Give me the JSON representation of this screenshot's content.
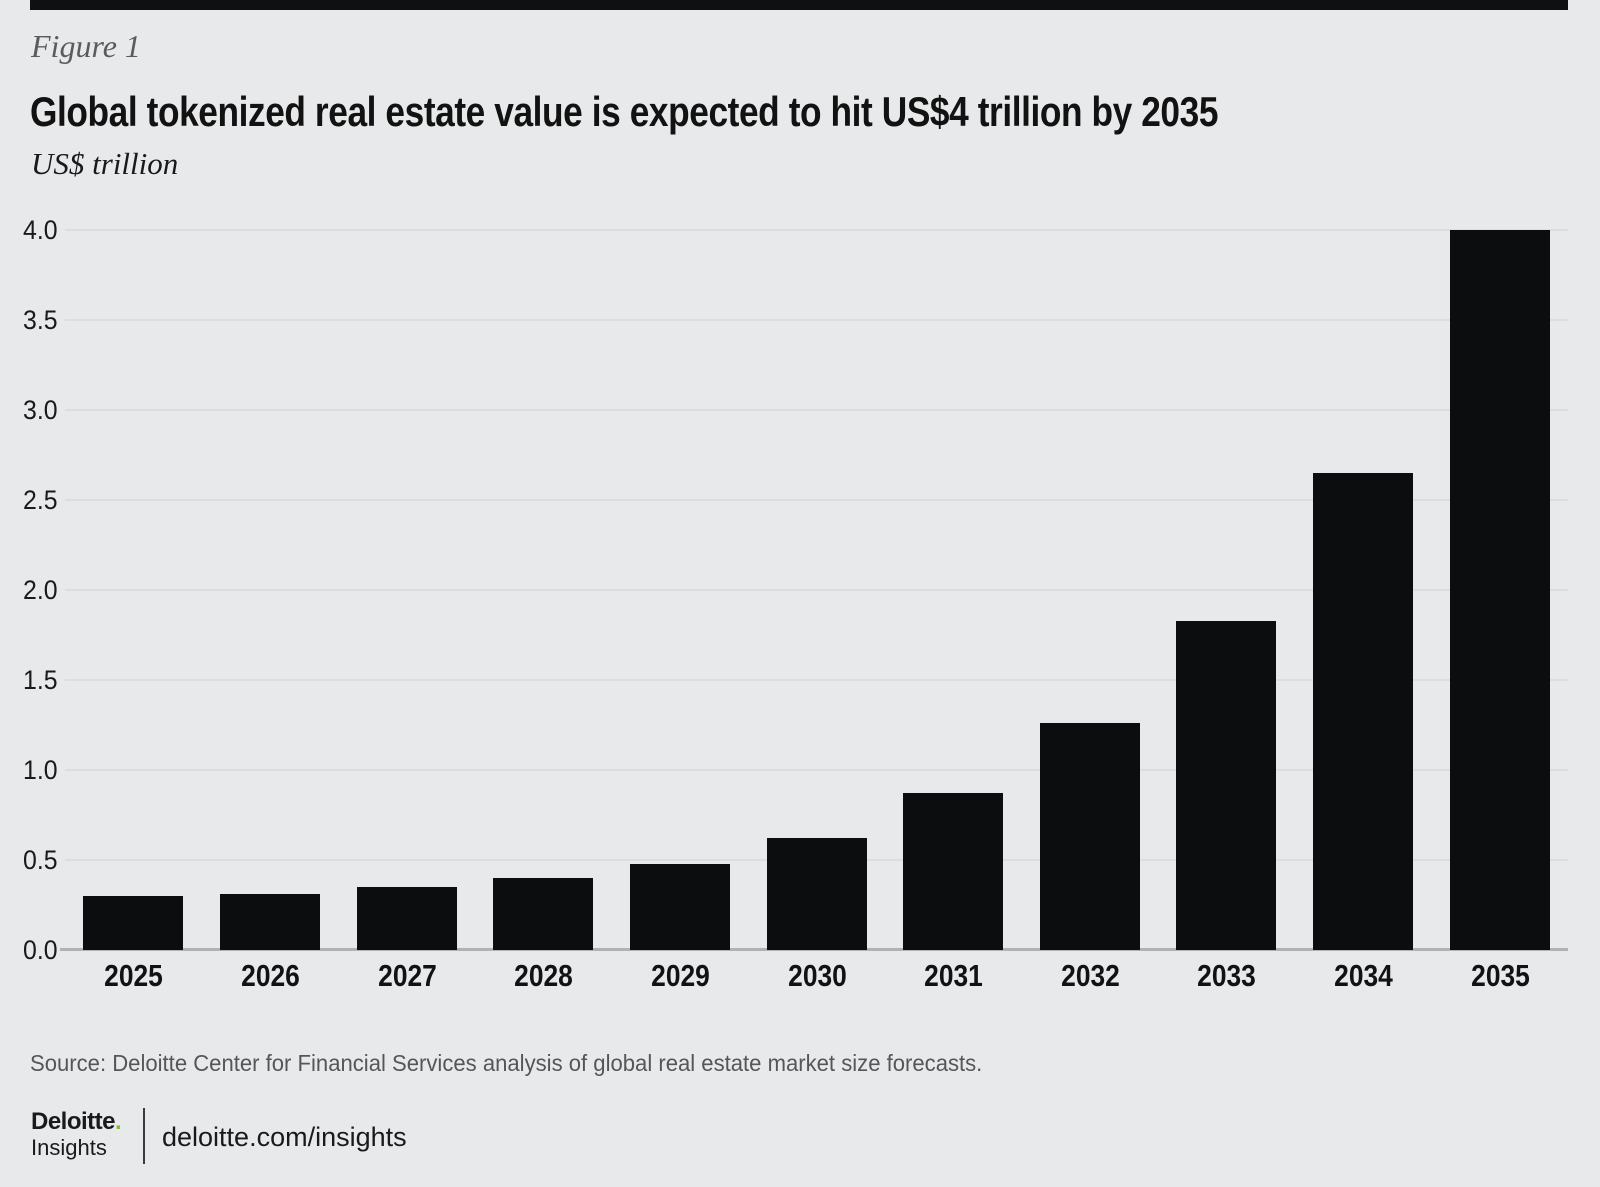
{
  "page": {
    "figure_label": "Figure 1",
    "title": "Global tokenized real estate value is expected to hit US$4 trillion by 2035",
    "unit_label": "US$ trillion"
  },
  "chart_data": {
    "type": "bar",
    "title": "Global tokenized real estate value is expected to hit US$4 trillion by 2035",
    "categories": [
      "2025",
      "2026",
      "2027",
      "2028",
      "2029",
      "2030",
      "2031",
      "2032",
      "2033",
      "2034",
      "2035"
    ],
    "values": [
      0.3,
      0.31,
      0.35,
      0.4,
      0.48,
      0.62,
      0.87,
      1.26,
      1.83,
      2.65,
      4.0
    ],
    "xlabel": "",
    "ylabel": "US$ trillion",
    "ylim": [
      0,
      4.0
    ],
    "ytick_labels": [
      "0.0",
      "0.5",
      "1.0",
      "1.5",
      "2.0",
      "2.5",
      "3.0",
      "3.5",
      "4.0"
    ],
    "grid": "horizontal",
    "legend": "none"
  },
  "footer": {
    "source": "Source: Deloitte Center for Financial Services analysis of global real estate market size forecasts.",
    "logo": {
      "brand": "Deloitte",
      "dot": ".",
      "sub_brand": "Insights",
      "site": "deloitte.com/insights"
    }
  },
  "colors": {
    "background": "#e8e9ea",
    "bar": "#0c0d0f",
    "gridline": "#dcddde",
    "axis_line": "#b0b2b5",
    "accent_green": "#86bc25",
    "muted_text": "#55565a",
    "title_text": "#121212",
    "top_rule": "#0f1011"
  }
}
